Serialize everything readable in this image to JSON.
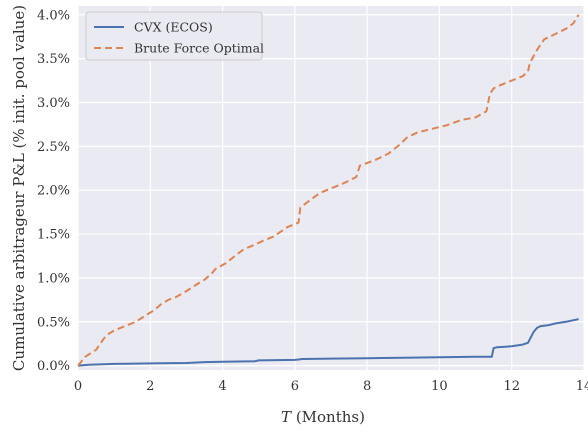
{
  "chart_data": {
    "type": "line",
    "title": "",
    "xlabel": "T (Months)",
    "xlabel_italic_part": "T",
    "xlabel_rest": " (Months)",
    "ylabel": "Cumulative arbitrageur P&L (% init. pool value)",
    "xlim": [
      0,
      14
    ],
    "ylim": [
      -0.05,
      4.1
    ],
    "xticks": [
      0,
      2,
      4,
      6,
      8,
      10,
      12,
      14
    ],
    "xtick_labels": [
      "0",
      "2",
      "4",
      "6",
      "8",
      "10",
      "12",
      "14"
    ],
    "yticks": [
      0.0,
      0.5,
      1.0,
      1.5,
      2.0,
      2.5,
      3.0,
      3.5,
      4.0
    ],
    "ytick_labels": [
      "0.0%",
      "0.5%",
      "1.0%",
      "1.5%",
      "2.0%",
      "2.5%",
      "3.0%",
      "3.5%",
      "4.0%"
    ],
    "grid": true,
    "background": "#eaeaf2",
    "legend_position": "top-left",
    "series": [
      {
        "name": "CVX (ECOS)",
        "color": "#4c72b0",
        "style": "solid",
        "x": [
          0,
          0.3,
          1.0,
          2.0,
          3.0,
          3.5,
          4.0,
          4.9,
          5.0,
          6.0,
          6.1,
          6.2,
          7.0,
          8.0,
          9.0,
          10.0,
          11.0,
          11.45,
          11.5,
          11.6,
          12.0,
          12.3,
          12.45,
          12.5,
          12.6,
          12.7,
          12.8,
          13.0,
          13.2,
          13.5,
          13.85
        ],
        "y": [
          0.0,
          0.01,
          0.02,
          0.025,
          0.03,
          0.04,
          0.045,
          0.05,
          0.06,
          0.065,
          0.07,
          0.075,
          0.08,
          0.085,
          0.09,
          0.095,
          0.1,
          0.1,
          0.2,
          0.21,
          0.22,
          0.24,
          0.26,
          0.3,
          0.38,
          0.43,
          0.45,
          0.46,
          0.48,
          0.5,
          0.53
        ]
      },
      {
        "name": "Brute Force Optimal",
        "color": "#dd8452",
        "style": "dashed",
        "x": [
          0,
          0.2,
          0.5,
          0.7,
          0.8,
          1.0,
          1.3,
          1.6,
          1.9,
          2.1,
          2.3,
          2.5,
          2.7,
          3.0,
          3.3,
          3.5,
          3.7,
          3.8,
          4.1,
          4.4,
          4.6,
          4.9,
          5.1,
          5.4,
          5.8,
          6.1,
          6.15,
          6.4,
          6.7,
          7.0,
          7.3,
          7.7,
          7.8,
          8.2,
          8.6,
          8.9,
          9.1,
          9.4,
          9.8,
          10.2,
          10.6,
          11.0,
          11.3,
          11.4,
          11.5,
          11.7,
          12.0,
          12.3,
          12.45,
          12.5,
          12.7,
          12.9,
          13.2,
          13.5,
          13.7,
          13.85
        ],
        "y": [
          0.0,
          0.1,
          0.18,
          0.3,
          0.35,
          0.4,
          0.45,
          0.5,
          0.58,
          0.63,
          0.7,
          0.75,
          0.78,
          0.85,
          0.93,
          0.98,
          1.05,
          1.1,
          1.17,
          1.27,
          1.33,
          1.38,
          1.42,
          1.47,
          1.58,
          1.63,
          1.8,
          1.88,
          1.97,
          2.02,
          2.07,
          2.15,
          2.28,
          2.34,
          2.42,
          2.52,
          2.6,
          2.66,
          2.7,
          2.74,
          2.8,
          2.83,
          2.9,
          3.1,
          3.16,
          3.2,
          3.25,
          3.3,
          3.35,
          3.45,
          3.6,
          3.72,
          3.78,
          3.84,
          3.9,
          4.0
        ]
      }
    ]
  }
}
